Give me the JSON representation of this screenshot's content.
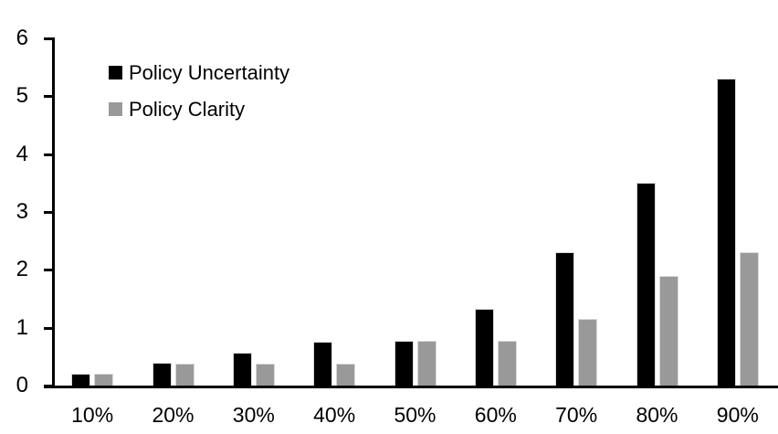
{
  "chart_data": {
    "type": "bar",
    "title": "",
    "xlabel": "",
    "ylabel": "",
    "categories": [
      "10%",
      "20%",
      "30%",
      "40%",
      "50%",
      "60%",
      "70%",
      "80%",
      "90%"
    ],
    "series": [
      {
        "name": "Policy Uncertainty",
        "color": "#000000",
        "values": [
          0.2,
          0.4,
          0.57,
          0.76,
          0.78,
          1.33,
          2.3,
          3.5,
          5.3
        ]
      },
      {
        "name": "Policy Clarity",
        "color": "#999999",
        "values": [
          0.2,
          0.38,
          0.38,
          0.38,
          0.77,
          0.77,
          1.15,
          1.9,
          2.3
        ]
      }
    ],
    "ylim": [
      0,
      6
    ],
    "yticks": [
      0,
      1,
      2,
      3,
      4,
      5,
      6
    ],
    "grid": false,
    "legend_position": "top-left-inside",
    "axis_color": "#000000",
    "background_color": "#ffffff",
    "bar_border_color": "#d9d9d9"
  }
}
